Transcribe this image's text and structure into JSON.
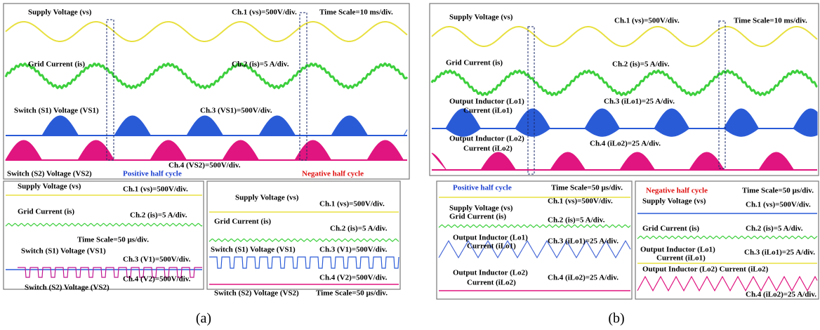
{
  "panels": [
    {
      "caption": "(a)",
      "main": [
        "Supply Voltage (vs)",
        "Ch.1 (vs)=500V/div.",
        "Time Scale=10 ms/div.",
        "Grid Current (is)",
        "Ch.2 (is)=5 A/div.",
        "Switch (S1) Voltage (VS1)",
        "Ch.3 (VS1)=500V/div.",
        "Switch (S2) Voltage (VS2)",
        "Ch.4 (VS2)=500V/div.",
        "Positive half cycle",
        "Negative half cycle"
      ],
      "zoom_left": [
        "Supply Voltage (vs)",
        "Ch.1 (vs)=500V/div.",
        "Grid Current (is)",
        "Ch.2 (is)=5 A/div.",
        "Time Scale=50 µs/div.",
        "Switch (S1) Voltage (VS1)",
        "Ch.3 (V1)=500V/div.",
        "Ch.4 (V2)=500V/div.",
        "Switch (S2) Voltage (VS2)"
      ],
      "zoom_right": [
        "Supply Voltage (vs)",
        "Ch.1 (vs)=500V/div.",
        "Grid Current (is)",
        "Ch.2 (is)=5 A/div.",
        "Switch (S1) Voltage (VS1)",
        "Ch.3 (V1)=500V/div.",
        "Ch.4 (V2)=500V/div.",
        "Switch (S2) Voltage (VS2)",
        "Time Scale=50 µs/div."
      ]
    },
    {
      "caption": "(b)",
      "main": [
        "Supply Voltage (vs)",
        "Ch.1 (vs)=500V/div.",
        "Time Scale=10 ms/div.",
        "Grid Current (is)",
        "Ch.2 (is)=5 A/div.",
        "Output Inductor (Lo1)",
        "Current (iLo1)",
        "Ch.3 (iLo1)=25 A/div.",
        "Output Inductor (Lo2)",
        "Current (iLo2)",
        "Ch.4 (iLo2)=25 A/div."
      ],
      "zoom_left": [
        "Positive half cycle",
        "Time Scale=50 µs/div.",
        "Ch.1 (vs)=500V/div.",
        "Supply Voltage (vs)",
        "Grid Current (is)",
        "Ch.2 (is)=5 A/div.",
        "Output Inductor (Lo1)",
        "Current (iLo1)",
        "Ch.3 (iLo1)=25 A/div.",
        "Output Inductor (Lo2)",
        "Current (iLo2)",
        "Ch.4 (iLo2)=25 A/div."
      ],
      "zoom_right": [
        "Negative half cycle",
        "Time Scale=50 µs/div.",
        "Supply Voltage (vs)",
        "Ch.1 (vs)=500V/div.",
        "Grid Current (is)",
        "Ch.2 (is)=5 A/div.",
        "Output Inductor (Lo1)",
        "Current (iLo1)",
        "Ch.3 (iLo1)=25 A/div.",
        "Output Inductor (Lo2) Current (iLo2)",
        "Ch.4 (iLo2)=25 A/div."
      ]
    }
  ]
}
